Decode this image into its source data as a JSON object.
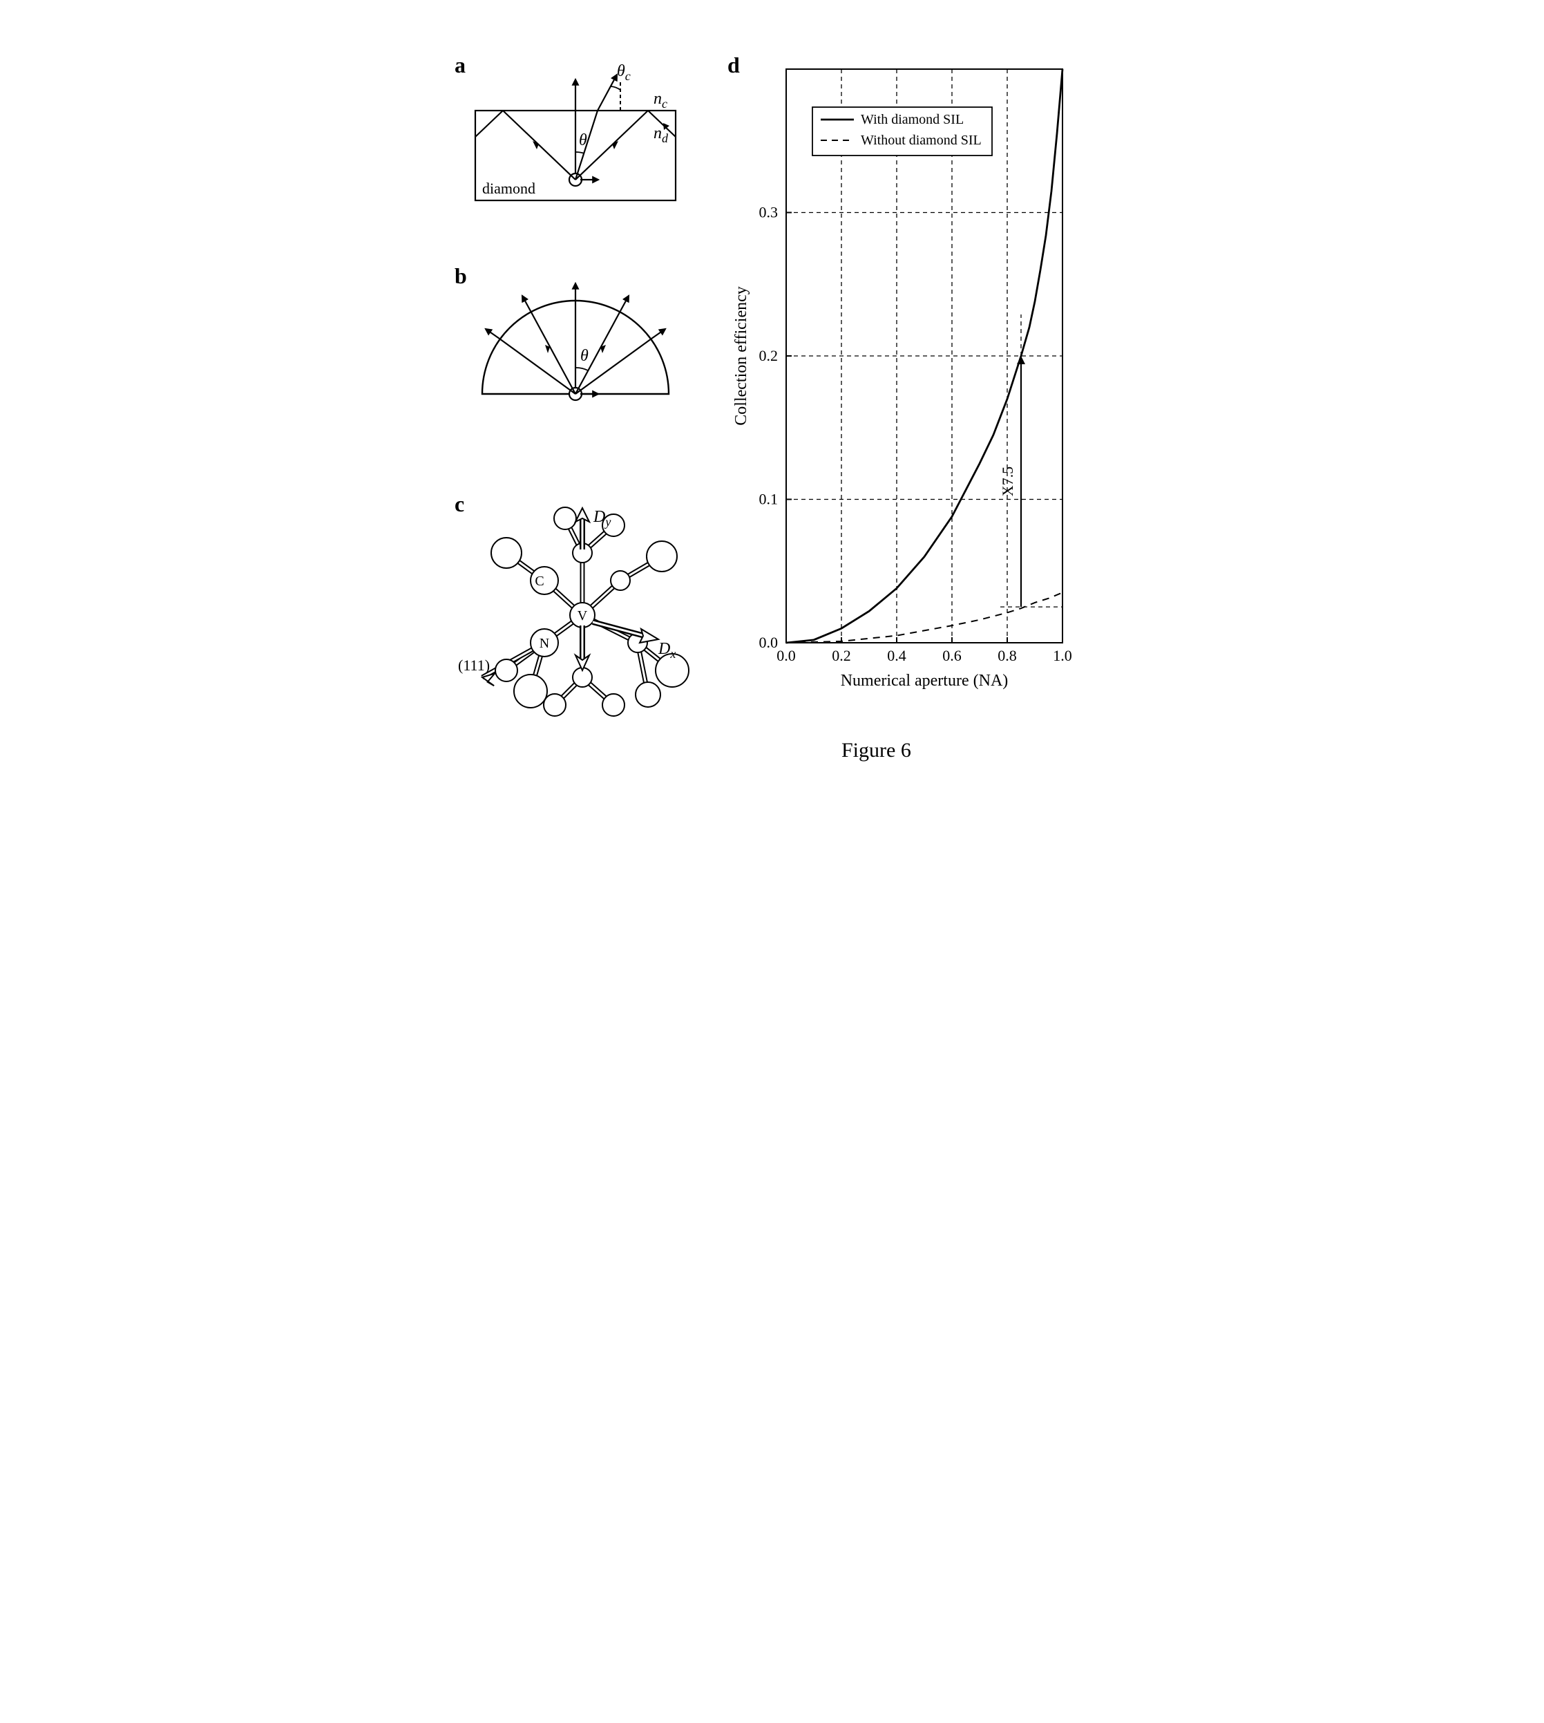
{
  "panel_labels": {
    "a": "a",
    "b": "b",
    "c": "c",
    "d": "d"
  },
  "panel_a": {
    "box_text": "diamond",
    "theta": "θ",
    "theta_c": "θ",
    "theta_c_sub": "c",
    "n_c": "n",
    "n_c_sub": "c",
    "n_d": "n",
    "n_d_sub": "d"
  },
  "panel_b": {
    "theta": "θ"
  },
  "panel_c": {
    "Dy": "D",
    "Dy_sub": "y",
    "Dx": "D",
    "Dx_sub": "x",
    "C": "C",
    "N": "N",
    "V": "V",
    "plane": "(111)"
  },
  "panel_d": {
    "type": "line",
    "xlabel": "Numerical aperture (NA)",
    "ylabel": "Collection efficiency",
    "xlim": [
      0.0,
      1.0
    ],
    "ylim": [
      0.0,
      0.4
    ],
    "xticks": [
      0.0,
      0.2,
      0.4,
      0.6,
      0.8,
      1.0
    ],
    "yticks": [
      0.0,
      0.1,
      0.2,
      0.3
    ],
    "xtick_labels": [
      "0.0",
      "0.2",
      "0.4",
      "0.6",
      "0.8",
      "1.0"
    ],
    "ytick_labels": [
      "0.0",
      "0.1",
      "0.2",
      "0.3"
    ],
    "grid_dashed": true,
    "grid_color": "#000000",
    "background_color": "#ffffff",
    "legend": {
      "position": "top-right",
      "items": [
        {
          "label": "With diamond SIL",
          "style": "solid"
        },
        {
          "label": "Without diamond SIL",
          "style": "dashed"
        }
      ]
    },
    "series": [
      {
        "name": "with_sil",
        "style": "solid",
        "line_width": 2.8,
        "color": "#000000",
        "points": [
          [
            0.0,
            0.0
          ],
          [
            0.1,
            0.002
          ],
          [
            0.2,
            0.01
          ],
          [
            0.3,
            0.022
          ],
          [
            0.4,
            0.038
          ],
          [
            0.5,
            0.06
          ],
          [
            0.6,
            0.088
          ],
          [
            0.7,
            0.125
          ],
          [
            0.75,
            0.145
          ],
          [
            0.8,
            0.17
          ],
          [
            0.85,
            0.2
          ],
          [
            0.88,
            0.22
          ],
          [
            0.9,
            0.238
          ],
          [
            0.92,
            0.26
          ],
          [
            0.94,
            0.284
          ],
          [
            0.96,
            0.315
          ],
          [
            0.98,
            0.355
          ],
          [
            1.0,
            0.4
          ]
        ]
      },
      {
        "name": "without_sil",
        "style": "dashed",
        "line_width": 2.0,
        "color": "#000000",
        "points": [
          [
            0.0,
            0.0
          ],
          [
            0.2,
            0.001
          ],
          [
            0.4,
            0.005
          ],
          [
            0.6,
            0.012
          ],
          [
            0.7,
            0.016
          ],
          [
            0.8,
            0.021
          ],
          [
            0.85,
            0.024
          ],
          [
            0.9,
            0.028
          ],
          [
            0.95,
            0.031
          ],
          [
            1.0,
            0.035
          ]
        ]
      }
    ],
    "annotation": {
      "x": 0.85,
      "label": "X7.5",
      "from_y": 0.025,
      "to_y": 0.2
    }
  },
  "figure_caption": "Figure 6"
}
